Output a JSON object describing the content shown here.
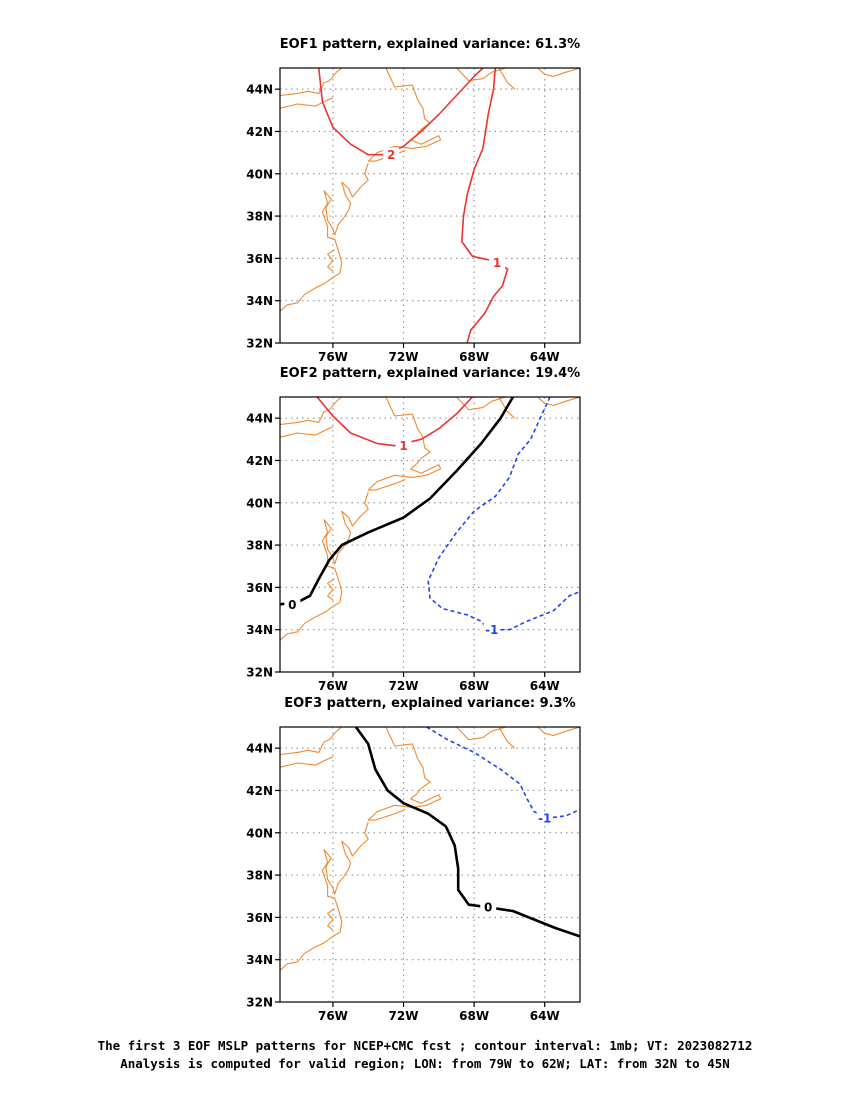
{
  "map_data": {
    "type": "contour_map",
    "projection": "lat-lon",
    "region": {
      "lon_range_deg": [
        -79,
        -62
      ],
      "lat_range_deg": [
        32,
        45
      ]
    },
    "colors": {
      "coastline": "#f08a30",
      "positive_contour": "#ee3333",
      "zero_contour": "#000000",
      "negative_contour": "#2244ee",
      "grid": "#999999"
    },
    "x_ticks": [
      {
        "value": -76,
        "label": "76W"
      },
      {
        "value": -72,
        "label": "72W"
      },
      {
        "value": -68,
        "label": "68W"
      },
      {
        "value": -64,
        "label": "64W"
      }
    ],
    "y_ticks": [
      {
        "value": 32,
        "label": "32N"
      },
      {
        "value": 34,
        "label": "34N"
      },
      {
        "value": 36,
        "label": "36N"
      },
      {
        "value": 38,
        "label": "38N"
      },
      {
        "value": 40,
        "label": "40N"
      },
      {
        "value": 42,
        "label": "42N"
      },
      {
        "value": 44,
        "label": "44N"
      }
    ],
    "grid": true,
    "panels": [
      {
        "id": "eof1",
        "title": "EOF1 pattern, explained variance: 61.3%",
        "contours": [
          {
            "level": 2,
            "label": "2",
            "sign": "positive",
            "points": [
              [
                -76.8,
                45
              ],
              [
                -76.6,
                43.4
              ],
              [
                -76.0,
                42.2
              ],
              [
                -75.0,
                41.4
              ],
              [
                -74.0,
                40.9
              ],
              [
                -73.0,
                40.9
              ],
              [
                -72.0,
                41.3
              ],
              [
                -71.0,
                42.0
              ],
              [
                -70.0,
                42.8
              ],
              [
                -69.0,
                43.7
              ],
              [
                -68.0,
                44.6
              ],
              [
                -67.5,
                45
              ]
            ],
            "label_at": [
              -72.7,
              40.9
            ]
          },
          {
            "level": 1,
            "label": "1",
            "sign": "positive",
            "points": [
              [
                -66.8,
                45
              ],
              [
                -66.9,
                44.0
              ],
              [
                -67.2,
                42.8
              ],
              [
                -67.5,
                41.2
              ],
              [
                -68.0,
                40.2
              ],
              [
                -68.4,
                39.0
              ],
              [
                -68.6,
                38.0
              ],
              [
                -68.7,
                36.8
              ],
              [
                -68.1,
                36.1
              ],
              [
                -67.0,
                35.9
              ],
              [
                -66.1,
                35.5
              ],
              [
                -66.4,
                34.7
              ],
              [
                -66.9,
                34.2
              ],
              [
                -67.4,
                33.4
              ],
              [
                -68.2,
                32.6
              ],
              [
                -68.4,
                32
              ]
            ],
            "label_at": [
              -66.7,
              35.8
            ]
          }
        ]
      },
      {
        "id": "eof2",
        "title": "EOF2 pattern, explained variance: 19.4%",
        "contours": [
          {
            "level": 1,
            "label": "1",
            "sign": "positive",
            "points": [
              [
                -76.9,
                45
              ],
              [
                -76.0,
                44.1
              ],
              [
                -75.0,
                43.3
              ],
              [
                -73.5,
                42.8
              ],
              [
                -72.5,
                42.7
              ],
              [
                -71.0,
                43.0
              ],
              [
                -70.0,
                43.5
              ],
              [
                -69.0,
                44.2
              ],
              [
                -68.1,
                45
              ]
            ],
            "label_at": [
              -72.0,
              42.7
            ]
          },
          {
            "level": 0,
            "label": "0",
            "sign": "zero",
            "points": [
              [
                -79,
                35.2
              ],
              [
                -78.0,
                35.3
              ],
              [
                -77.3,
                35.6
              ],
              [
                -76.8,
                36.4
              ],
              [
                -76.2,
                37.3
              ],
              [
                -75.5,
                38.0
              ],
              [
                -74.0,
                38.6
              ],
              [
                -72.0,
                39.3
              ],
              [
                -70.5,
                40.2
              ],
              [
                -69.0,
                41.5
              ],
              [
                -67.6,
                42.8
              ],
              [
                -66.5,
                44.0
              ],
              [
                -65.8,
                45
              ]
            ],
            "label_at": [
              -78.3,
              35.2
            ]
          },
          {
            "level": -1,
            "label": "-1",
            "sign": "negative",
            "points": [
              [
                -63.7,
                45
              ],
              [
                -64.2,
                44.1
              ],
              [
                -64.8,
                43.0
              ],
              [
                -65.5,
                42.3
              ],
              [
                -66.0,
                41.2
              ],
              [
                -66.8,
                40.3
              ],
              [
                -68.0,
                39.6
              ],
              [
                -69.0,
                38.6
              ],
              [
                -70.0,
                37.4
              ],
              [
                -70.6,
                36.3
              ],
              [
                -70.5,
                35.5
              ],
              [
                -69.8,
                35.0
              ],
              [
                -68.4,
                34.7
              ],
              [
                -67.6,
                34.4
              ],
              [
                -67.2,
                34.0
              ],
              [
                -66.0,
                34.0
              ],
              [
                -65.0,
                34.4
              ],
              [
                -64.4,
                34.6
              ],
              [
                -63.5,
                34.9
              ],
              [
                -62.6,
                35.6
              ],
              [
                -62,
                35.8
              ]
            ],
            "label_at": [
              -67.0,
              34.0
            ]
          }
        ]
      },
      {
        "id": "eof3",
        "title": "EOF3 pattern, explained variance: 9.3%",
        "contours": [
          {
            "level": 0,
            "label": "0",
            "sign": "zero",
            "points": [
              [
                -74.7,
                45
              ],
              [
                -74.0,
                44.2
              ],
              [
                -73.6,
                43.0
              ],
              [
                -72.9,
                42.0
              ],
              [
                -72.0,
                41.4
              ],
              [
                -70.6,
                40.9
              ],
              [
                -69.6,
                40.3
              ],
              [
                -69.1,
                39.4
              ],
              [
                -68.9,
                38.3
              ],
              [
                -68.9,
                37.3
              ],
              [
                -68.3,
                36.6
              ],
              [
                -67.4,
                36.5
              ],
              [
                -65.8,
                36.3
              ],
              [
                -64.6,
                35.9
              ],
              [
                -63.4,
                35.5
              ],
              [
                -62,
                35.1
              ]
            ],
            "label_at": [
              -67.2,
              36.5
            ]
          },
          {
            "level": -1,
            "label": "-1",
            "sign": "negative",
            "points": [
              [
                -70.7,
                45
              ],
              [
                -69.5,
                44.4
              ],
              [
                -68.0,
                43.8
              ],
              [
                -66.5,
                43.0
              ],
              [
                -65.4,
                42.3
              ],
              [
                -65.0,
                41.6
              ],
              [
                -64.6,
                41.0
              ],
              [
                -63.8,
                40.7
              ],
              [
                -62.8,
                40.8
              ],
              [
                -62,
                41.1
              ]
            ],
            "label_at": [
              -64.0,
              40.7
            ]
          }
        ]
      }
    ],
    "coastlines": [
      [
        [
          -79,
          43.7
        ],
        [
          -78.0,
          43.8
        ],
        [
          -77.4,
          43.9
        ],
        [
          -76.8,
          43.8
        ],
        [
          -76.5,
          44.3
        ],
        [
          -76.2,
          44.4
        ],
        [
          -75.8,
          44.8
        ],
        [
          -75.5,
          45
        ]
      ],
      [
        [
          -79,
          43.1
        ],
        [
          -78.0,
          43.3
        ],
        [
          -77.0,
          43.2
        ],
        [
          -76.5,
          43.4
        ],
        [
          -76.0,
          43.6
        ]
      ],
      [
        [
          -73.0,
          45
        ],
        [
          -72.5,
          44.1
        ],
        [
          -71.5,
          44.2
        ],
        [
          -71.2,
          43.5
        ],
        [
          -70.9,
          43.1
        ],
        [
          -70.8,
          42.6
        ],
        [
          -70.5,
          42.4
        ],
        [
          -71.0,
          42.1
        ],
        [
          -71.3,
          41.8
        ],
        [
          -71.6,
          41.6
        ],
        [
          -71.0,
          41.4
        ],
        [
          -70.5,
          41.6
        ],
        [
          -70.0,
          41.8
        ],
        [
          -69.9,
          41.6
        ],
        [
          -70.7,
          41.3
        ],
        [
          -71.5,
          41.2
        ],
        [
          -72.5,
          41.3
        ],
        [
          -73.5,
          41.0
        ],
        [
          -74.0,
          40.6
        ],
        [
          -73.6,
          40.6
        ],
        [
          -72.5,
          40.9
        ],
        [
          -71.9,
          41.1
        ]
      ],
      [
        [
          -74.0,
          40.5
        ],
        [
          -74.2,
          40.0
        ],
        [
          -74.0,
          39.7
        ],
        [
          -74.4,
          39.4
        ],
        [
          -74.9,
          38.9
        ],
        [
          -75.1,
          39.3
        ],
        [
          -75.5,
          39.6
        ],
        [
          -75.3,
          39.0
        ],
        [
          -75.0,
          38.6
        ],
        [
          -75.1,
          38.3
        ],
        [
          -75.4,
          37.9
        ],
        [
          -75.7,
          37.6
        ],
        [
          -75.9,
          37.1
        ],
        [
          -76.0,
          37.4
        ],
        [
          -76.3,
          37.8
        ],
        [
          -76.4,
          38.4
        ],
        [
          -76.1,
          38.8
        ],
        [
          -76.5,
          39.2
        ],
        [
          -76.3,
          38.6
        ],
        [
          -76.6,
          38.2
        ],
        [
          -76.3,
          37.5
        ],
        [
          -76.3,
          37.0
        ],
        [
          -75.9,
          36.9
        ],
        [
          -75.7,
          36.4
        ],
        [
          -75.5,
          35.8
        ],
        [
          -75.6,
          35.3
        ],
        [
          -76.0,
          35.1
        ],
        [
          -76.5,
          34.8
        ],
        [
          -77.0,
          34.6
        ],
        [
          -77.6,
          34.3
        ],
        [
          -78.0,
          33.9
        ],
        [
          -78.6,
          33.8
        ],
        [
          -79,
          33.5
        ]
      ],
      [
        [
          -75.9,
          36.4
        ],
        [
          -76.3,
          36.2
        ],
        [
          -76.0,
          35.9
        ],
        [
          -76.3,
          35.6
        ],
        [
          -76.0,
          35.4
        ]
      ],
      [
        [
          -69.0,
          45
        ],
        [
          -68.3,
          44.4
        ],
        [
          -67.5,
          44.5
        ],
        [
          -67.0,
          44.8
        ],
        [
          -66.2,
          45
        ],
        [
          -65.0,
          45
        ],
        [
          -64.4,
          45
        ],
        [
          -64.0,
          44.7
        ],
        [
          -63.5,
          44.6
        ],
        [
          -62.8,
          44.8
        ],
        [
          -62,
          45
        ]
      ],
      [
        [
          -66.6,
          45
        ],
        [
          -66.1,
          44.3
        ],
        [
          -65.7,
          44.0
        ]
      ]
    ]
  },
  "caption": {
    "line1": "The first 3 EOF MSLP patterns for NCEP+CMC fcst ; contour interval: 1mb; VT: 2023082712",
    "line2": "Analysis is computed for valid region; LON: from 79W to 62W; LAT: from 32N to 45N"
  }
}
